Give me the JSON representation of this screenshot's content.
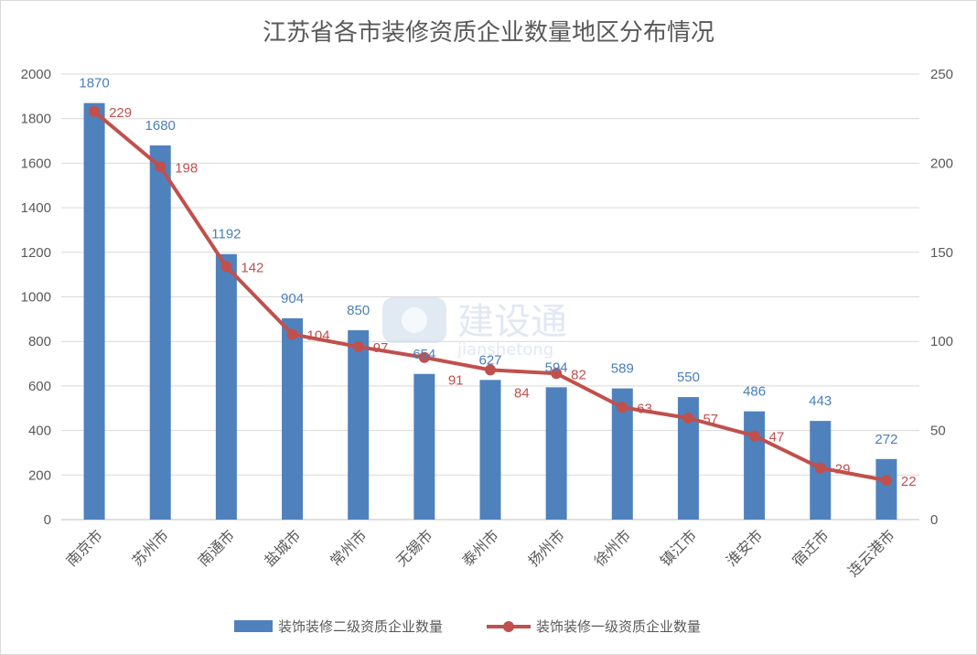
{
  "chart_data": {
    "type": "bar+line",
    "title": "江苏省各市装修资质企业数量地区分布情况",
    "categories": [
      "南京市",
      "苏州市",
      "南通市",
      "盐城市",
      "常州市",
      "无锡市",
      "泰州市",
      "扬州市",
      "徐州市",
      "镇江市",
      "淮安市",
      "宿迁市",
      "连云港市"
    ],
    "series": [
      {
        "name": "装饰装修二级资质企业数量",
        "type": "bar",
        "axis": "left",
        "color": "#4f81bd",
        "values": [
          1870,
          1680,
          1192,
          904,
          850,
          654,
          627,
          594,
          589,
          550,
          486,
          443,
          272
        ]
      },
      {
        "name": "装饰装修一级资质企业数量",
        "type": "line",
        "axis": "right",
        "color": "#c0504d",
        "values": [
          229,
          198,
          142,
          104,
          97,
          91,
          84,
          82,
          63,
          57,
          47,
          29,
          22
        ]
      }
    ],
    "left_axis": {
      "min": 0,
      "max": 2000,
      "step": 200
    },
    "right_axis": {
      "min": 0,
      "max": 250,
      "step": 50
    },
    "grid": true,
    "legend_position": "bottom",
    "watermark": {
      "brand": "建设通",
      "url": "jianshetong"
    }
  }
}
